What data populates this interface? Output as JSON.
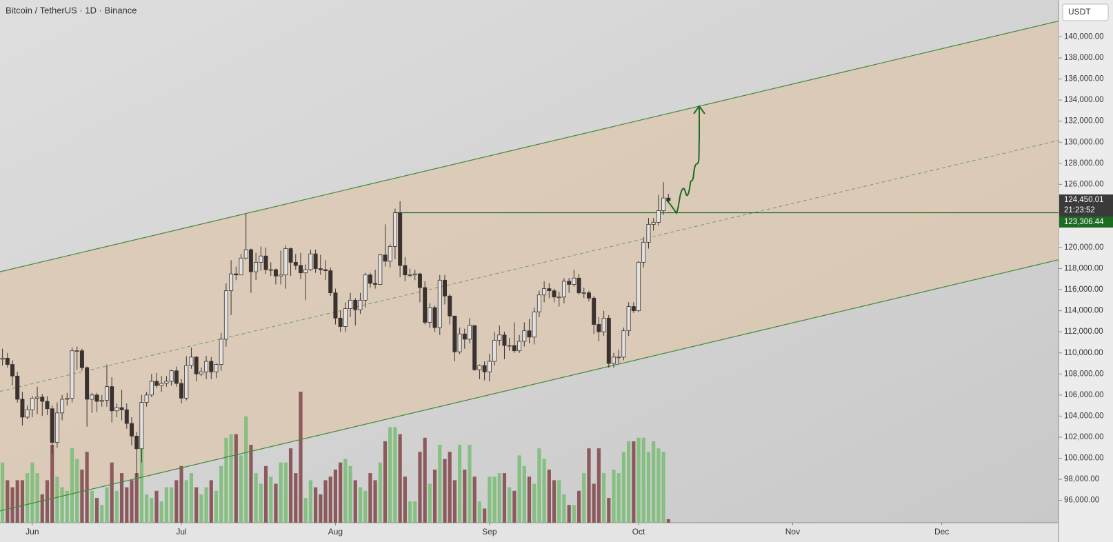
{
  "chart_data": {
    "type": "candlestick",
    "title": "Bitcoin / TetherUS · 1D · Binance",
    "currency": "USDT",
    "open": [
      109400,
      109500,
      108900,
      107800,
      105600,
      103900,
      104600,
      105700,
      105800,
      105400,
      104700,
      101500,
      104300,
      105600,
      105700,
      110200,
      110200,
      108600,
      105600,
      106000,
      105400,
      105500,
      106800,
      104500,
      104800,
      104600,
      103300,
      102100,
      100900,
      105300,
      106000,
      107300,
      106900,
      107100,
      107300,
      108300,
      107100,
      105700,
      108800,
      109600,
      108000,
      108200,
      109200,
      108200,
      108900,
      111300,
      115900,
      117500,
      117400,
      119000,
      119800,
      117700,
      118600,
      119200,
      117900,
      117900,
      117300,
      117400,
      119900,
      118600,
      118300,
      117600,
      117900,
      119400,
      118000,
      117900,
      117800,
      115700,
      113300,
      112500,
      114200,
      115000,
      114100,
      115000,
      117400,
      116600,
      116500,
      119300,
      118700,
      120100,
      123300,
      118300,
      117400,
      117400,
      117500,
      116200,
      112900,
      114300,
      112400,
      116900,
      115400,
      113500,
      110100,
      111800,
      111300,
      112600,
      108400,
      108800,
      108200,
      109200,
      111200,
      111700,
      110700,
      110700,
      110200,
      111100,
      112100,
      111500,
      113900,
      115500,
      116100,
      115900,
      115300,
      115300,
      116800,
      116500,
      117100,
      115700,
      115700,
      115200,
      112700,
      112000,
      113300,
      109000,
      109600,
      109600,
      112100,
      114400,
      114000,
      118600,
      120500,
      122200,
      122400,
      123500,
      124700
    ],
    "high": [
      110400,
      110000,
      109300,
      108200,
      106300,
      105000,
      105900,
      106800,
      106100,
      105900,
      105000,
      105300,
      106000,
      106200,
      110500,
      110600,
      110400,
      108700,
      106200,
      106200,
      106000,
      108900,
      107700,
      105200,
      106500,
      105200,
      103900,
      102500,
      106000,
      106300,
      108000,
      108100,
      107800,
      107800,
      108400,
      108700,
      107500,
      109700,
      110500,
      109700,
      108600,
      109700,
      109600,
      109000,
      111900,
      116600,
      118800,
      118200,
      119400,
      123200,
      119900,
      119500,
      120100,
      120000,
      118600,
      118000,
      119700,
      120200,
      120000,
      119400,
      119500,
      118400,
      119800,
      119800,
      119300,
      118800,
      118100,
      116100,
      114000,
      114800,
      115700,
      115200,
      115700,
      117600,
      117600,
      117900,
      119400,
      122200,
      120300,
      123700,
      124400,
      119100,
      118000,
      117900,
      117600,
      116800,
      114700,
      114500,
      117400,
      117400,
      115600,
      113500,
      112400,
      112300,
      113300,
      112600,
      108900,
      109200,
      109900,
      112000,
      112600,
      112000,
      111400,
      112900,
      111700,
      112900,
      113200,
      114300,
      115900,
      116800,
      116600,
      116100,
      115800,
      117100,
      117100,
      117900,
      117500,
      116200,
      115900,
      115400,
      113400,
      114000,
      113600,
      110000,
      110300,
      112400,
      114800,
      114800,
      118700,
      121000,
      122800,
      122800,
      125000,
      126200,
      125100
    ],
    "low": [
      108800,
      108600,
      106900,
      105300,
      103100,
      103700,
      103900,
      104200,
      104000,
      104100,
      100400,
      101000,
      103600,
      105000,
      105300,
      108400,
      108300,
      103000,
      104300,
      104400,
      104900,
      104900,
      103400,
      103900,
      103600,
      102800,
      101200,
      98200,
      99600,
      104900,
      105800,
      106700,
      106300,
      106800,
      106900,
      106800,
      105200,
      105500,
      108500,
      107300,
      107800,
      107500,
      107500,
      107600,
      108300,
      110600,
      113600,
      116900,
      117400,
      118900,
      115700,
      116900,
      117800,
      117500,
      117300,
      116500,
      116500,
      116100,
      117300,
      117900,
      117000,
      115000,
      117800,
      117600,
      117400,
      116900,
      115400,
      112700,
      112000,
      112000,
      113400,
      112600,
      113700,
      114300,
      116200,
      116100,
      116500,
      118200,
      118100,
      118900,
      117200,
      116800,
      117200,
      116900,
      114800,
      112700,
      112400,
      112000,
      111700,
      114600,
      112700,
      109200,
      109900,
      110400,
      110900,
      108300,
      107500,
      107400,
      107300,
      108800,
      110700,
      109400,
      110200,
      110000,
      110000,
      110600,
      110900,
      110800,
      113400,
      114800,
      115200,
      114800,
      114400,
      114700,
      115700,
      116300,
      115500,
      115200,
      114900,
      111800,
      111100,
      111600,
      108600,
      108600,
      109000,
      109300,
      111600,
      113800,
      113900,
      118100,
      119900,
      121600,
      122100,
      123100,
      124200
    ],
    "close": [
      109500,
      108900,
      107800,
      105600,
      103900,
      104600,
      105700,
      105800,
      105400,
      104700,
      101500,
      104300,
      105600,
      105700,
      110200,
      110200,
      108600,
      105600,
      106000,
      105400,
      105500,
      106800,
      104500,
      104800,
      104600,
      103300,
      102100,
      100900,
      105300,
      106000,
      107300,
      106900,
      107100,
      107300,
      108300,
      107100,
      105700,
      108800,
      109600,
      108000,
      108200,
      109200,
      108200,
      108900,
      111300,
      115900,
      117500,
      117400,
      119000,
      119800,
      117700,
      118600,
      119200,
      117900,
      117900,
      117300,
      117400,
      119900,
      118600,
      118300,
      117600,
      117900,
      119400,
      118000,
      117900,
      117800,
      115700,
      113300,
      112500,
      114200,
      115000,
      114100,
      115000,
      117400,
      116600,
      116500,
      119300,
      118700,
      120100,
      123300,
      118300,
      117400,
      117400,
      117500,
      116200,
      112900,
      114300,
      112400,
      116900,
      115400,
      113500,
      110100,
      111800,
      111300,
      112600,
      108400,
      108800,
      108200,
      109200,
      111200,
      111700,
      110700,
      110700,
      110200,
      111100,
      112100,
      111500,
      113900,
      115500,
      116100,
      115900,
      115300,
      115300,
      116800,
      116500,
      117100,
      115700,
      115700,
      115200,
      112700,
      112000,
      113300,
      109000,
      109600,
      109600,
      112100,
      114400,
      114000,
      118600,
      120500,
      122200,
      122400,
      123500,
      124700,
      124450.01
    ],
    "volume": [
      17,
      12,
      10,
      12,
      12,
      14,
      17,
      14,
      8,
      12,
      22,
      13,
      10,
      9,
      21,
      18,
      15,
      20,
      9,
      7,
      5,
      10,
      17,
      9,
      14,
      10,
      12,
      14,
      21,
      8,
      7,
      9,
      6,
      10,
      10,
      12,
      16,
      12,
      14,
      10,
      8,
      10,
      12,
      9,
      16,
      24,
      25,
      25,
      19,
      30,
      22,
      14,
      11,
      16,
      13,
      11,
      17,
      17,
      21,
      14,
      37,
      7,
      12,
      10,
      8,
      12,
      13,
      15,
      17,
      18,
      16,
      12,
      10,
      9,
      14,
      12,
      17,
      23,
      27,
      27,
      25,
      13,
      6,
      6,
      20,
      24,
      11,
      15,
      22,
      18,
      20,
      12,
      22,
      15,
      22,
      13,
      6,
      4,
      13,
      13,
      14,
      14,
      10,
      9,
      19,
      16,
      13,
      11,
      21,
      18,
      15,
      12,
      12,
      8,
      5,
      5,
      9,
      14,
      21,
      11,
      21,
      14,
      7,
      15,
      14,
      20,
      23,
      23,
      24,
      24,
      20,
      23,
      21,
      20,
      1
    ],
    "up_color": "#e2e2e2",
    "down_color": "#3b3230",
    "volume_up_color": "#86bf82",
    "volume_down_color": "#8c5a5c",
    "xlim": [
      -0.5,
      212.5
    ],
    "xticks": [
      {
        "value": 6,
        "label": "Jun"
      },
      {
        "value": 36,
        "label": "Jul"
      },
      {
        "value": 67,
        "label": "Aug"
      },
      {
        "value": 98,
        "label": "Sep"
      },
      {
        "value": 128,
        "label": "Oct"
      },
      {
        "value": 159,
        "label": "Nov"
      },
      {
        "value": 189,
        "label": "Dec"
      }
    ],
    "ylim": [
      93880,
      143500
    ],
    "yticks": [
      {
        "value": 140000,
        "label": "140,000.00"
      },
      {
        "value": 138000,
        "label": "138,000.00"
      },
      {
        "value": 136000,
        "label": "136,000.00"
      },
      {
        "value": 134000,
        "label": "134,000.00"
      },
      {
        "value": 132000,
        "label": "132,000.00"
      },
      {
        "value": 130000,
        "label": "130,000.00"
      },
      {
        "value": 128000,
        "label": "128,000.00"
      },
      {
        "value": 126000,
        "label": "126,000.00"
      },
      {
        "value": 120000,
        "label": "120,000.00"
      },
      {
        "value": 118000,
        "label": "118,000.00"
      },
      {
        "value": 116000,
        "label": "116,000.00"
      },
      {
        "value": 114000,
        "label": "114,000.00"
      },
      {
        "value": 112000,
        "label": "112,000.00"
      },
      {
        "value": 110000,
        "label": "110,000.00"
      },
      {
        "value": 108000,
        "label": "108,000.00"
      },
      {
        "value": 106000,
        "label": "106,000.00"
      },
      {
        "value": 104000,
        "label": "104,000.00"
      },
      {
        "value": 102000,
        "label": "102,000.00"
      },
      {
        "value": 100000,
        "label": "100,000.00"
      },
      {
        "value": 98000,
        "label": "98,000.00"
      },
      {
        "value": 96000,
        "label": "96,000.00"
      }
    ],
    "channel": {
      "x": [
        -0.5,
        212.5
      ],
      "upper": [
        117700,
        141500
      ],
      "median": [
        106350,
        130170
      ],
      "lower": [
        95000,
        118840
      ],
      "color": "#3f8a3a",
      "fill": "#dcc7ad"
    },
    "last_price": {
      "value": 124450.01,
      "label": "124,450.01",
      "countdown": "21:23:52"
    },
    "level": {
      "value": 123306.44,
      "label": "123,306.44",
      "start": 79,
      "color": "#1e6b24"
    }
  }
}
